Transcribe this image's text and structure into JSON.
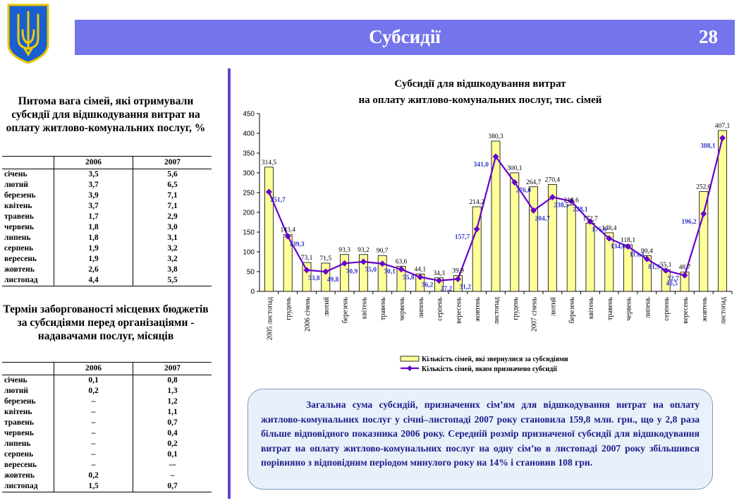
{
  "header": {
    "title": "Субсидії",
    "page_number": "28"
  },
  "left_table_1": {
    "title": "Питома вага сімей, які отримували субсидії для відшкодування витрат на оплату житлово-комунальних послуг, %",
    "columns": [
      "2006",
      "2007"
    ],
    "rows": [
      {
        "month": "січень",
        "v2006": "3,5",
        "v2007": "5,6"
      },
      {
        "month": "лютий",
        "v2006": "3,7",
        "v2007": "6,5"
      },
      {
        "month": "березень",
        "v2006": "3,9",
        "v2007": "7,1"
      },
      {
        "month": "квітень",
        "v2006": "3,7",
        "v2007": "7,1"
      },
      {
        "month": "травень",
        "v2006": "1,7",
        "v2007": "2,9"
      },
      {
        "month": "червень",
        "v2006": "1,8",
        "v2007": "3,0"
      },
      {
        "month": "липень",
        "v2006": "1,8",
        "v2007": "3,1"
      },
      {
        "month": "серпень",
        "v2006": "1,9",
        "v2007": "3,2"
      },
      {
        "month": "вересень",
        "v2006": "1,9",
        "v2007": "3,2"
      },
      {
        "month": "жовтень",
        "v2006": "2,6",
        "v2007": "3,8"
      },
      {
        "month": "листопад",
        "v2006": "4,4",
        "v2007": "5,5"
      }
    ]
  },
  "left_table_2": {
    "title": "Термін заборгованості місцевих бюджетів за субсидіями перед організаціями - надавачами послуг, місяців",
    "columns": [
      "2006",
      "2007"
    ],
    "rows": [
      {
        "month": "січень",
        "v2006": "0,1",
        "v2007": "0,8"
      },
      {
        "month": "лютий",
        "v2006": "0,2",
        "v2007": "1,3"
      },
      {
        "month": "березень",
        "v2006": "–",
        "v2007": "1,2"
      },
      {
        "month": "квітень",
        "v2006": "–",
        "v2007": "1,1"
      },
      {
        "month": "травень",
        "v2006": "–",
        "v2007": "0,7"
      },
      {
        "month": "червень",
        "v2006": "–",
        "v2007": "0,4"
      },
      {
        "month": "липень",
        "v2006": "–",
        "v2007": "0,2"
      },
      {
        "month": "серпень",
        "v2006": "–",
        "v2007": "0,1"
      },
      {
        "month": "вересень",
        "v2006": "–",
        "v2007": "–-"
      },
      {
        "month": "жовтень",
        "v2006": "0,2",
        "v2007": "–"
      },
      {
        "month": "листопад",
        "v2006": "1,5",
        "v2007": "0,7"
      }
    ]
  },
  "chart_data": {
    "type": "bar",
    "title": "Субсидії для відшкодування витрат на оплату житлово-комунальних послуг, тис. сімей",
    "title_lines": [
      "Субсидії для відшкодування витрат",
      "на оплату житлово-комунальних послуг, тис. сімей"
    ],
    "categories": [
      "2005 листопад",
      "грудень",
      "2006 січень",
      "лютий",
      "березень",
      "квітень",
      "травень",
      "червень",
      "липень",
      "серпень",
      "вересень",
      "жовтень",
      "листопад",
      "грудень",
      "2007 січень",
      "лютий",
      "березень",
      "квітень",
      "травень",
      "червень",
      "липень",
      "серпень",
      "вересень",
      "жовтень",
      "листопад"
    ],
    "series": [
      {
        "name": "Кількість сімей, які звернулися за субсидіями",
        "kind": "bar",
        "color": "#ffff99",
        "values": [
          314.5,
          143.4,
          73.1,
          71.5,
          93.3,
          93.2,
          90.7,
          63.6,
          44.1,
          34.3,
          39.9,
          214.2,
          380.3,
          300.1,
          264.7,
          270.4,
          218.6,
          172.7,
          148.4,
          118.1,
          90.4,
          55.1,
          48.7,
          252.6,
          407.1
        ],
        "labels": [
          "314,5",
          "143,4",
          "73,1",
          "71,5",
          "93,3",
          "93,2",
          "90,7",
          "63,6",
          "44,1",
          "34,3",
          "39,9",
          "214,2",
          "380,3",
          "300,1",
          "264,7",
          "270,4",
          "218,6",
          "172,7",
          "148,4",
          "118,1",
          "90,4",
          "55,1",
          "48,7",
          "252,6",
          "407,1"
        ]
      },
      {
        "name": "Кількість сімей, яким призначено субсидії",
        "kind": "line",
        "color": "#6600cc",
        "values": [
          251.7,
          139.3,
          53.8,
          49.8,
          70.9,
          75.0,
          70.1,
          55.8,
          36.2,
          27.2,
          31.2,
          157.7,
          341.0,
          276.0,
          204.7,
          238.5,
          228.1,
          176.6,
          134.0,
          113.3,
          81.9,
          52.7,
          40.5,
          196.2,
          388.1
        ],
        "labels": [
          "251,7",
          "139,3",
          "53,8",
          "49,8",
          "70,9",
          "75,0",
          "70,1",
          "55,8",
          "36,2",
          "27,2",
          "31,2",
          "157,7",
          "341,0",
          "276,0",
          "204,7",
          "238,5",
          "228,1",
          "176,6",
          "134,0",
          "113,3",
          "81,9",
          "52,7",
          "40,5",
          "196,2",
          "388,1"
        ]
      }
    ],
    "ylim": [
      0,
      450
    ],
    "yticks": [
      "0",
      "50",
      "100",
      "150",
      "200",
      "250",
      "300",
      "350",
      "400",
      "450"
    ],
    "legend_position": "bottom"
  },
  "note": {
    "text": "Загальна сума субсидій, призначених сім’ям для відшкодування витрат на оплату житлово-комунальних послуг у січні–листопаді 2007 року становила 159,8 млн. грн., що у 2,8 раза більше відповідного показника 2006 року. Середній розмір призначеної субсидії для відшкодування витрат на оплату житлово-комунальних послуг на одну сім’ю в листопаді 2007 року збільшився порівняно з відповідним періодом минулого року на 14% і становив 108 грн."
  },
  "colors": {
    "header": "#7474ec",
    "divider": "#6a3fc8",
    "bar": "#ffff99",
    "line": "#6600cc",
    "line_label": "#3333cc",
    "note_bg": "#e8f1fa",
    "note_text": "#1d1d8a"
  }
}
